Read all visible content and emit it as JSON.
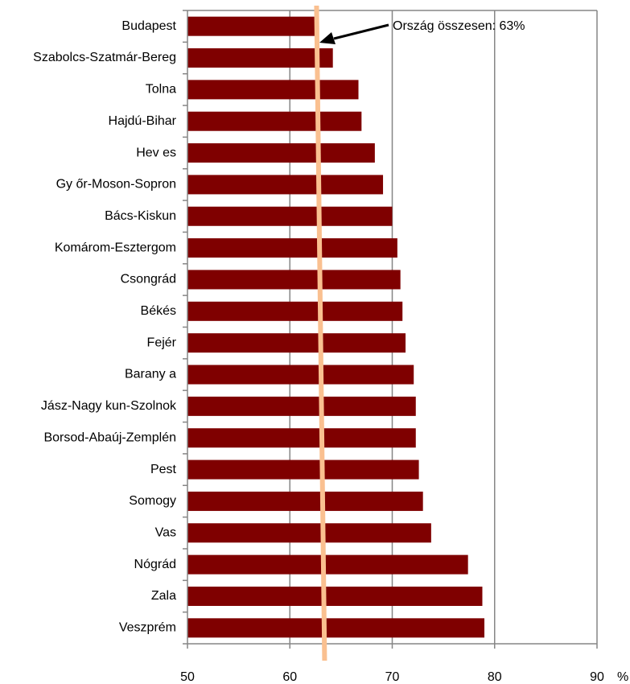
{
  "chart_data": {
    "type": "bar",
    "orientation": "horizontal",
    "categories": [
      "Budapest",
      "Szabolcs-Szatmár-Bereg",
      "Tolna",
      "Hajdú-Bihar",
      "Hev es",
      "Gy őr-Moson-Sopron",
      "Bács-Kiskun",
      "Komárom-Esztergom",
      "Csongrád",
      "Békés",
      "Fejér",
      "Barany a",
      "Jász-Nagy kun-Szolnok",
      "Borsod-Abaúj-Zemplén",
      "Pest",
      "Somogy",
      "Vas",
      "Nógrád",
      "Zala",
      "Veszprém"
    ],
    "values": [
      62.6,
      64.2,
      66.7,
      67.0,
      68.3,
      69.1,
      70.0,
      70.5,
      70.8,
      71.0,
      71.3,
      72.1,
      72.3,
      72.3,
      72.6,
      73.0,
      73.8,
      77.4,
      78.8,
      79.0
    ],
    "xlim": [
      50,
      90
    ],
    "xticks": [
      50,
      60,
      70,
      80,
      90
    ],
    "x_unit": "%",
    "grid": "vertical",
    "bar_color": "#7f0000",
    "reference_line": {
      "value": 63,
      "label": "Ország összesen: 63%",
      "color": "#fac090"
    }
  }
}
